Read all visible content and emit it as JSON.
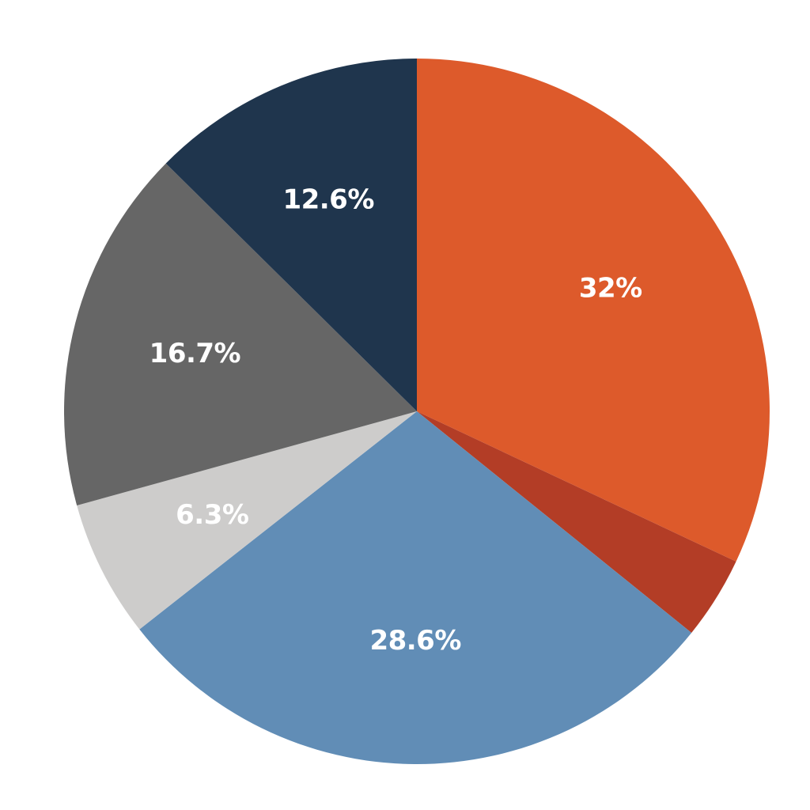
{
  "chart_data": {
    "type": "pie",
    "title": "",
    "start_angle_deg": 0,
    "direction": "clockwise",
    "slices": [
      {
        "label": "32%",
        "value": 32.0,
        "color": "#DD5A2B"
      },
      {
        "label": "",
        "value": 3.8,
        "color": "#B33D26"
      },
      {
        "label": "28.6%",
        "value": 28.6,
        "color": "#618DB6"
      },
      {
        "label": "6.3%",
        "value": 6.3,
        "color": "#CDCCCB"
      },
      {
        "label": "16.7%",
        "value": 16.7,
        "color": "#666666"
      },
      {
        "label": "12.6%",
        "value": 12.6,
        "color": "#1F354D"
      }
    ]
  }
}
